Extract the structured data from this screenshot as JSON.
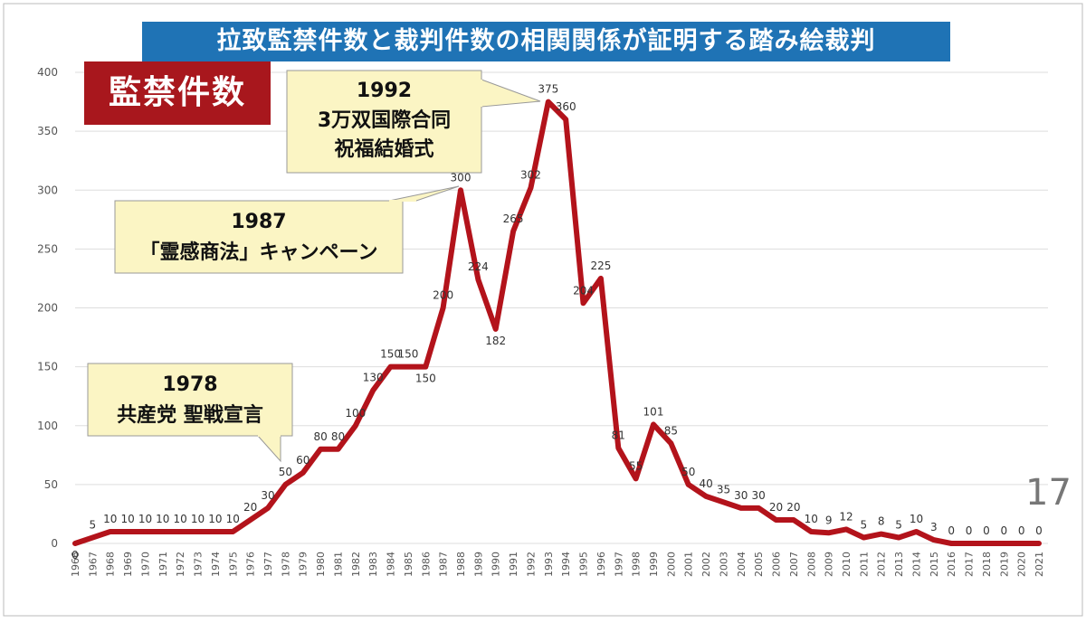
{
  "title": "拉致監禁件数と裁判件数の相関関係が証明する踏み絵裁判",
  "series_label": "監禁件数",
  "side_number": "17",
  "callouts": [
    {
      "year": "1992",
      "lines": [
        "1992",
        "3万双国際合同",
        "祝福結婚式"
      ]
    },
    {
      "year": "1987",
      "lines": [
        "1987",
        "「霊感商法」キャンペーン"
      ]
    },
    {
      "year": "1978",
      "lines": [
        "1978",
        "共産党 聖戦宣言"
      ]
    }
  ],
  "colors": {
    "line": "#b3131b",
    "banner": "#1f73b5",
    "label_box": "#a8171d",
    "callout_fill": "#fbf5c4",
    "grid": "#dddddd"
  },
  "chart_data": {
    "type": "line",
    "title": "拉致監禁件数と裁判件数の相関関係が証明する踏み絵裁判",
    "xlabel": "",
    "ylabel": "",
    "ylim": [
      0,
      400
    ],
    "yticks": [
      0,
      50,
      100,
      150,
      200,
      250,
      300,
      350,
      400
    ],
    "grid": true,
    "categories": [
      "1966",
      "1967",
      "1968",
      "1969",
      "1970",
      "1971",
      "1972",
      "1973",
      "1974",
      "1975",
      "1976",
      "1977",
      "1978",
      "1979",
      "1980",
      "1981",
      "1982",
      "1983",
      "1984",
      "1985",
      "1986",
      "1987",
      "1988",
      "1989",
      "1990",
      "1991",
      "1992",
      "1993",
      "1994",
      "1995",
      "1996",
      "1997",
      "1998",
      "1999",
      "2000",
      "2001",
      "2002",
      "2003",
      "2004",
      "2005",
      "2006",
      "2007",
      "2008",
      "2009",
      "2010",
      "2011",
      "2012",
      "2013",
      "2014",
      "2015",
      "2016",
      "2017",
      "2018",
      "2019",
      "2020",
      "2021"
    ],
    "series": [
      {
        "name": "監禁件数",
        "values": [
          0,
          5,
          10,
          10,
          10,
          10,
          10,
          10,
          10,
          10,
          20,
          30,
          50,
          60,
          80,
          80,
          100,
          130,
          150,
          150,
          150,
          200,
          300,
          224,
          182,
          265,
          302,
          375,
          360,
          204,
          225,
          81,
          55,
          101,
          85,
          50,
          40,
          35,
          30,
          30,
          20,
          20,
          10,
          9,
          12,
          5,
          8,
          5,
          10,
          3,
          0,
          0,
          0,
          0,
          0,
          0
        ]
      }
    ],
    "data_labels": [
      "0",
      "5",
      "10",
      "10",
      "10",
      "10",
      "10",
      "10",
      "10",
      "10",
      "20",
      "30",
      "50",
      "60",
      "80",
      "80",
      "100",
      "130",
      "150",
      "150",
      "150",
      "200",
      "300",
      "224",
      "182",
      "265",
      "302",
      "375",
      "360",
      "204",
      "225",
      "81",
      "55",
      "101",
      "85",
      "50",
      "40",
      "35",
      "30",
      "30",
      "20",
      "20",
      "10",
      "9",
      "12",
      "5",
      "8",
      "5",
      "10",
      "3",
      "0",
      "0",
      "0",
      "0",
      "0",
      "0"
    ]
  }
}
